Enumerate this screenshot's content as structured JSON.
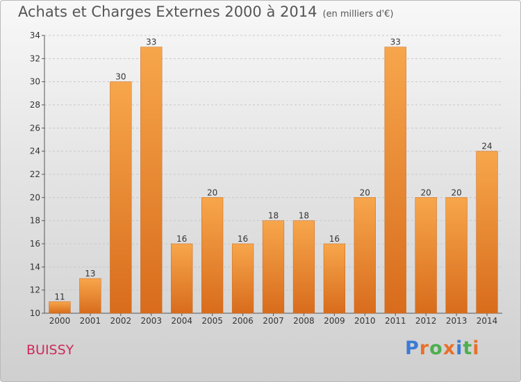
{
  "header": {
    "title": "Achats et Charges Externes 2000 à 2014",
    "unit": "(en milliers d'€)"
  },
  "footer": {
    "place": "BUISSY",
    "logo_text": "Proxiti",
    "logo_colors": [
      "#3a7bd5",
      "#e8702a",
      "#4caf50",
      "#e8702a",
      "#3a7bd5",
      "#4caf50",
      "#e8702a"
    ]
  },
  "chart_data": {
    "type": "bar",
    "title": "Achats et Charges Externes 2000 à 2014",
    "subtitle": "(en milliers d'€)",
    "xlabel": "",
    "ylabel": "",
    "categories": [
      "2000",
      "2001",
      "2002",
      "2003",
      "2004",
      "2005",
      "2006",
      "2007",
      "2008",
      "2009",
      "2010",
      "2011",
      "2012",
      "2013",
      "2014"
    ],
    "values": [
      11,
      13,
      30,
      33,
      16,
      20,
      16,
      18,
      18,
      16,
      20,
      33,
      20,
      20,
      24
    ],
    "ylim": [
      10,
      34
    ],
    "yticks": [
      10,
      12,
      14,
      16,
      18,
      20,
      22,
      24,
      26,
      28,
      30,
      32,
      34
    ],
    "grid": true,
    "data_labels": true,
    "bar_color": "#f0913a"
  }
}
